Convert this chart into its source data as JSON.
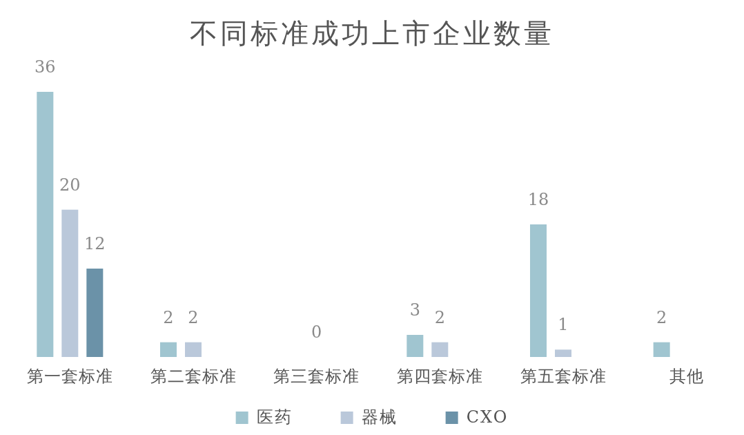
{
  "chart_data": {
    "type": "bar",
    "title": "不同标准成功上市企业数量",
    "categories": [
      "第一套标准",
      "第二套标准",
      "第三套标准",
      "第四套标准",
      "第五套标准",
      "其他"
    ],
    "series": [
      {
        "name": "医药",
        "color": "#a0c5d0",
        "values": [
          36,
          2,
          null,
          3,
          18,
          2
        ]
      },
      {
        "name": "器械",
        "color": "#bac8da",
        "values": [
          20,
          2,
          0,
          2,
          1,
          null
        ]
      },
      {
        "name": "CXO",
        "color": "#6b92a8",
        "values": [
          12,
          null,
          null,
          null,
          null,
          null
        ]
      }
    ],
    "data_labels": true,
    "legend": "bottom"
  }
}
